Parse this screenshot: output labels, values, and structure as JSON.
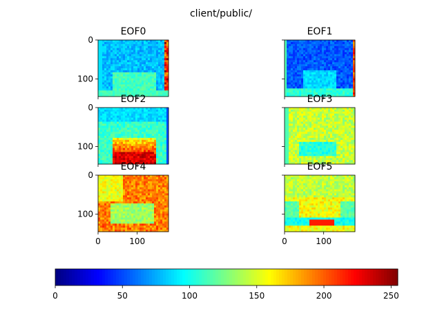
{
  "figure": {
    "suptitle": "client/public/"
  },
  "chart_data": {
    "type": "heatmap",
    "layout": "3x2 grid of image panels with shared horizontal colorbar",
    "panels": [
      {
        "title": "EOF0",
        "pattern": "eof0"
      },
      {
        "title": "EOF1",
        "pattern": "eof1"
      },
      {
        "title": "EOF2",
        "pattern": "eof2"
      },
      {
        "title": "EOF3",
        "pattern": "eof3"
      },
      {
        "title": "EOF4",
        "pattern": "eof4"
      },
      {
        "title": "EOF5",
        "pattern": "eof5"
      }
    ],
    "image_extent": {
      "x": [
        0,
        180
      ],
      "y": [
        0,
        145
      ]
    },
    "x_ticks": [
      0,
      100
    ],
    "x_tick_labels": [
      "0",
      "100"
    ],
    "y_ticks": [
      0,
      100
    ],
    "y_tick_labels": [
      "0",
      "100"
    ],
    "colorbar": {
      "colormap": "jet",
      "range": [
        0,
        255
      ],
      "ticks": [
        0,
        50,
        100,
        150,
        200,
        250
      ],
      "tick_labels": [
        "0",
        "50",
        "100",
        "150",
        "200",
        "250"
      ]
    }
  }
}
